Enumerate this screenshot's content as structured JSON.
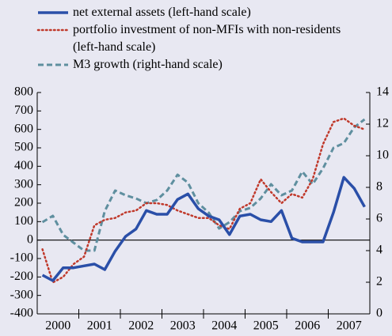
{
  "chart_data": {
    "type": "line",
    "x_labels": [
      "2000",
      "2001",
      "2002",
      "2003",
      "2004",
      "2005",
      "2006",
      "2007"
    ],
    "ylim": [
      -400,
      800
    ],
    "yticks": [
      -400,
      -300,
      -200,
      -100,
      0,
      100,
      200,
      300,
      400,
      500,
      600,
      700,
      800
    ],
    "y2lim": [
      0,
      14
    ],
    "y2ticks": [
      0,
      2,
      4,
      6,
      8,
      10,
      12,
      14
    ],
    "series": [
      {
        "name": "net external assets (left-hand scale)",
        "color": "#2a4fa8",
        "style": "solid",
        "values": [
          -190,
          -220,
          -150,
          -150,
          -140,
          -130,
          -160,
          -60,
          20,
          60,
          160,
          140,
          140,
          220,
          250,
          170,
          130,
          110,
          30,
          130,
          140,
          110,
          100,
          160,
          10,
          -10,
          -10,
          -10,
          150,
          340,
          280,
          180
        ]
      },
      {
        "name": "portfolio investment of non-MFIs with non-residents (left-hand scale)",
        "color": "#c0392b",
        "style": "dotted",
        "values": [
          -50,
          -230,
          -200,
          -130,
          -90,
          80,
          110,
          120,
          150,
          160,
          200,
          200,
          190,
          160,
          140,
          120,
          120,
          80,
          60,
          170,
          200,
          330,
          260,
          200,
          250,
          230,
          330,
          520,
          640,
          660,
          620,
          600
        ]
      },
      {
        "name": "M3 growth (right-hand scale)",
        "color": "#5f8f9f",
        "style": "dashed",
        "axis": "y2",
        "values": [
          5.8,
          6.2,
          5.0,
          4.5,
          4.0,
          4.0,
          6.5,
          7.8,
          7.5,
          7.3,
          7.0,
          7.2,
          7.8,
          8.8,
          8.3,
          7.0,
          6.4,
          5.4,
          5.8,
          6.5,
          6.7,
          7.3,
          8.2,
          7.5,
          7.8,
          9.0,
          8.2,
          9.2,
          10.5,
          10.8,
          11.8,
          12.3
        ]
      }
    ]
  }
}
